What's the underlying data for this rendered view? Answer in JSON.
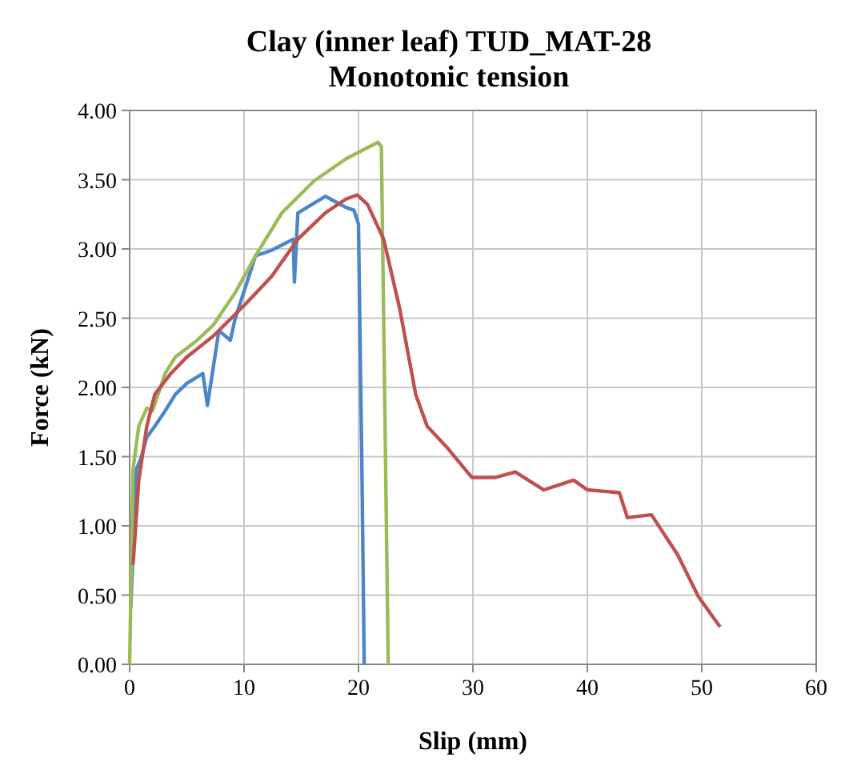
{
  "chart_data": {
    "type": "line",
    "title": "Clay (inner leaf) TUD_MAT-28\nMonotonic tension",
    "xlabel": "Slip (mm)",
    "ylabel": "Force (kN)",
    "xlim": [
      0,
      60
    ],
    "xticks": [
      0,
      10,
      20,
      30,
      40,
      50,
      60
    ],
    "ylim": [
      0,
      4
    ],
    "yticks": [
      {
        "value": 0,
        "label": "0.00"
      },
      {
        "value": 0.5,
        "label": "0.50"
      },
      {
        "value": 1,
        "label": "1.00"
      },
      {
        "value": 1.5,
        "label": "1.50"
      },
      {
        "value": 2,
        "label": "2.00"
      },
      {
        "value": 2.5,
        "label": "2.50"
      },
      {
        "value": 3,
        "label": "3.00"
      },
      {
        "value": 3.5,
        "label": "3.50"
      },
      {
        "value": 4,
        "label": "4.00"
      }
    ],
    "grid": true,
    "marker": "none",
    "line_style": "solid",
    "series": [
      {
        "color": "#4a86c8",
        "x": [
          0.1,
          0.6,
          1,
          1.5,
          2.2,
          3.1,
          4,
          5,
          6.4,
          6.8,
          7.8,
          8.8,
          9.2,
          11,
          12.4,
          14.3,
          14.4,
          14.7,
          17.1,
          18.9,
          19.6,
          20,
          20.1,
          20.3,
          20.5
        ],
        "values": [
          0.41,
          1.41,
          1.49,
          1.64,
          1.72,
          1.83,
          1.95,
          2.03,
          2.1,
          1.87,
          2.41,
          2.34,
          2.49,
          2.95,
          2.99,
          3.07,
          2.76,
          3.26,
          3.38,
          3.3,
          3.28,
          3.18,
          2.57,
          1.41,
          0
        ]
      },
      {
        "color": "#9bbb59",
        "x": [
          0,
          0.3,
          0.8,
          1.5,
          2,
          3.1,
          4,
          5.9,
          7.3,
          9.2,
          11,
          13.3,
          16.1,
          18.9,
          21.7,
          22,
          22.6
        ],
        "values": [
          0,
          1.41,
          1.72,
          1.85,
          1.83,
          2.1,
          2.22,
          2.34,
          2.45,
          2.68,
          2.95,
          3.26,
          3.49,
          3.65,
          3.77,
          3.74,
          0
        ]
      },
      {
        "color": "#c0504d",
        "x": [
          0.3,
          0.8,
          1.5,
          2.2,
          3.6,
          5,
          7.3,
          10.1,
          12.4,
          14.7,
          17.1,
          18.9,
          19.9,
          20.8,
          22.2,
          23.6,
          25,
          26,
          27.8,
          29.9,
          32,
          33.7,
          36.2,
          38.8,
          40,
          42.8,
          43.5,
          45.6,
          47.9,
          49.7,
          51.6
        ],
        "values": [
          0.72,
          1.33,
          1.72,
          1.95,
          2.1,
          2.22,
          2.37,
          2.6,
          2.8,
          3.07,
          3.26,
          3.36,
          3.39,
          3.32,
          3.07,
          2.57,
          1.95,
          1.72,
          1.56,
          1.35,
          1.35,
          1.39,
          1.26,
          1.33,
          1.26,
          1.24,
          1.06,
          1.08,
          0.79,
          0.49,
          0.27
        ]
      }
    ]
  }
}
